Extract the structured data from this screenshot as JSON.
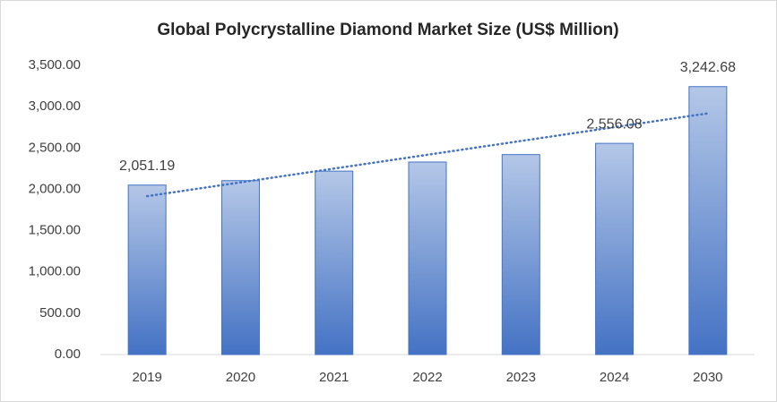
{
  "chart_data": {
    "type": "bar",
    "title": "Global Polycrystalline Diamond Market Size (US$ Million)",
    "categories": [
      "2019",
      "2020",
      "2021",
      "2022",
      "2023",
      "2024",
      "2030"
    ],
    "values": [
      2051.19,
      2105,
      2220,
      2330,
      2420,
      2556.08,
      3242.68
    ],
    "value_labels": [
      "2,051.19",
      null,
      null,
      null,
      null,
      "2,556.08",
      "3,242.68"
    ],
    "color": "#4472c4",
    "trendline": "linear",
    "ylim": [
      0,
      3500
    ],
    "yticks": [
      {
        "value": 0,
        "label": "0.00"
      },
      {
        "value": 500,
        "label": "500.00"
      },
      {
        "value": 1000,
        "label": "1,000.00"
      },
      {
        "value": 1500,
        "label": "1,500.00"
      },
      {
        "value": 2000,
        "label": "2,000.00"
      },
      {
        "value": 2500,
        "label": "2,500.00"
      },
      {
        "value": 3000,
        "label": "3,000.00"
      },
      {
        "value": 3500,
        "label": "3,500.00"
      }
    ],
    "grid": false
  }
}
